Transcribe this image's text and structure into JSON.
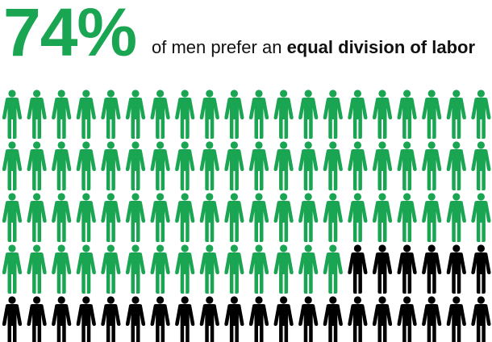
{
  "headline": {
    "percent": "74%",
    "caption_prefix": "of men prefer an",
    "caption_bold": "equal division of labor"
  },
  "pictogram": {
    "total_icons": 100,
    "highlighted_icons": 74,
    "highlight_color": "#1aa552",
    "base_color": "#000000",
    "icon_name": "person-icon"
  }
}
